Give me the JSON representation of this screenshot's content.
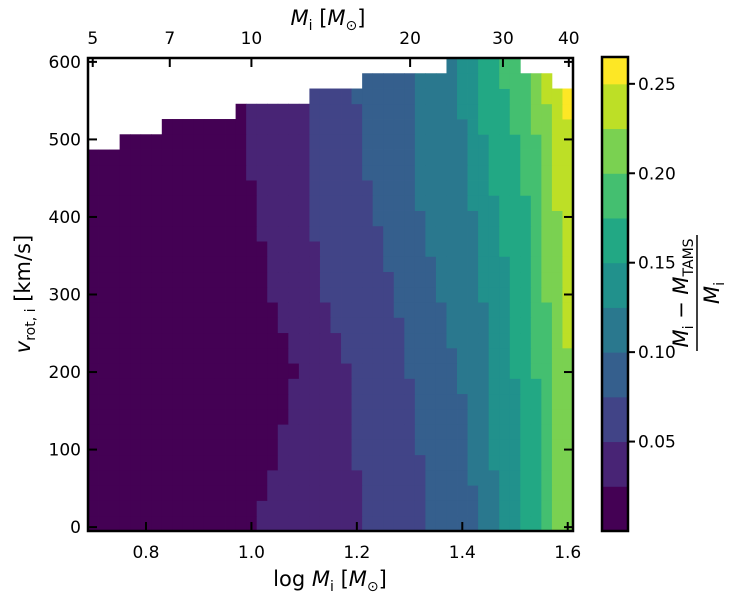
{
  "chart_data": {
    "type": "heatmap",
    "x_axis": {
      "label": "log M_i [M_⊙]",
      "range": [
        0.69,
        1.61
      ],
      "ticks": [
        0.8,
        1.0,
        1.2,
        1.4,
        1.6
      ],
      "tick_labels": [
        "0.8",
        "1.0",
        "1.2",
        "1.4",
        "1.6"
      ]
    },
    "x_axis_top": {
      "label": "M_i [M_⊙]",
      "ticks": [
        5,
        7,
        10,
        20,
        30,
        40
      ],
      "tick_labels": [
        "5",
        "7",
        "10",
        "20",
        "30",
        "40"
      ]
    },
    "y_axis": {
      "label": "v_rot,i [km/s]",
      "range": [
        -5,
        605
      ],
      "ticks": [
        0,
        100,
        200,
        300,
        400,
        500,
        600
      ],
      "tick_labels": [
        "0",
        "100",
        "200",
        "300",
        "400",
        "500",
        "600"
      ]
    },
    "colorbar": {
      "label": "(M_i − M_TAMS) / M_i",
      "range": [
        0.0,
        0.265
      ],
      "ticks": [
        0.05,
        0.1,
        0.15,
        0.2,
        0.25
      ],
      "tick_labels": [
        "0.05",
        "0.10",
        "0.15",
        "0.20",
        "0.25"
      ],
      "levels": [
        0.0,
        0.025,
        0.05,
        0.075,
        0.1,
        0.125,
        0.15,
        0.175,
        0.2,
        0.225,
        0.25,
        0.265
      ],
      "colors": [
        "#440154",
        "#482475",
        "#414487",
        "#355f8d",
        "#2a788e",
        "#21918c",
        "#22a884",
        "#44bf70",
        "#7ad151",
        "#bddf26",
        "#fde725"
      ]
    },
    "grid": false,
    "heatmap_grid": {
      "x_bins": 46,
      "y_bins": 31,
      "x_range": [
        0.69,
        1.61
      ],
      "v_range": [
        -5,
        605
      ]
    },
    "contour_boundaries": [
      {
        "level": 1,
        "points": [
          [
            0,
            1.01
          ],
          [
            200,
            1.085
          ],
          [
            300,
            1.04
          ],
          [
            450,
            1.0
          ],
          [
            600,
            0.99
          ]
        ]
      },
      {
        "level": 2,
        "points": [
          [
            0,
            1.22
          ],
          [
            120,
            1.19
          ],
          [
            200,
            1.19
          ],
          [
            300,
            1.13
          ],
          [
            450,
            1.11
          ],
          [
            600,
            1.11
          ]
        ]
      },
      {
        "level": 3,
        "points": [
          [
            0,
            1.34
          ],
          [
            150,
            1.31
          ],
          [
            300,
            1.27
          ],
          [
            450,
            1.22
          ],
          [
            600,
            1.19
          ]
        ]
      },
      {
        "level": 4,
        "points": [
          [
            0,
            1.43
          ],
          [
            200,
            1.395
          ],
          [
            350,
            1.34
          ],
          [
            450,
            1.31
          ],
          [
            600,
            1.3
          ]
        ]
      },
      {
        "level": 5,
        "points": [
          [
            0,
            1.47
          ],
          [
            150,
            1.45
          ],
          [
            300,
            1.44
          ],
          [
            450,
            1.41
          ],
          [
            600,
            1.39
          ]
        ]
      },
      {
        "level": 6,
        "points": [
          [
            0,
            1.52
          ],
          [
            200,
            1.5
          ],
          [
            350,
            1.48
          ],
          [
            500,
            1.44
          ],
          [
            600,
            1.42
          ]
        ]
      },
      {
        "level": 7,
        "points": [
          [
            0,
            1.555
          ],
          [
            200,
            1.54
          ],
          [
            400,
            1.53
          ],
          [
            500,
            1.5
          ],
          [
            600,
            1.47
          ]
        ]
      },
      {
        "level": 8,
        "points": [
          [
            0,
            1.57
          ],
          [
            150,
            1.58
          ],
          [
            300,
            1.56
          ],
          [
            450,
            1.55
          ],
          [
            600,
            1.52
          ]
        ]
      },
      {
        "level": 9,
        "points": [
          [
            0,
            1.62
          ],
          [
            350,
            1.59
          ],
          [
            450,
            1.575
          ],
          [
            550,
            1.56
          ],
          [
            600,
            1.54
          ]
        ]
      },
      {
        "level": 10,
        "points": [
          [
            0,
            1.7
          ],
          [
            450,
            1.66
          ],
          [
            520,
            1.6
          ],
          [
            560,
            1.58
          ],
          [
            600,
            1.575
          ]
        ]
      }
    ],
    "empty_region_top": [
      [
        0.69,
        485
      ],
      [
        0.72,
        492
      ],
      [
        0.78,
        505
      ],
      [
        0.85,
        520
      ],
      [
        0.95,
        532
      ],
      [
        1.0,
        540
      ],
      [
        1.05,
        545
      ],
      [
        1.12,
        560
      ],
      [
        1.2,
        575
      ],
      [
        1.3,
        590
      ],
      [
        1.4,
        598
      ],
      [
        1.5,
        600
      ],
      [
        1.55,
        585
      ],
      [
        1.61,
        560
      ]
    ]
  }
}
